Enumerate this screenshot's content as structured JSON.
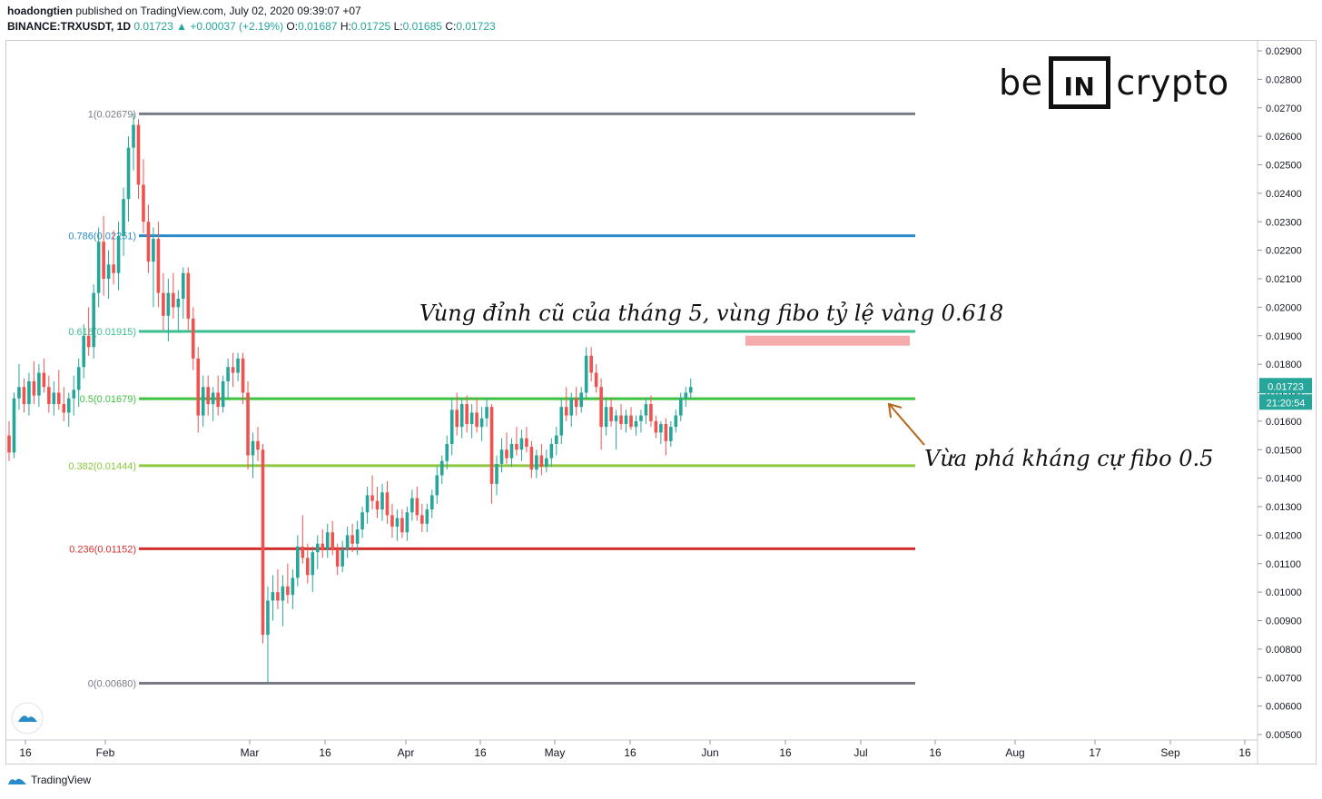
{
  "header": {
    "author": "hoadongtien",
    "published": " published on TradingView.com, July 02, 2020 09:39:07 +07",
    "symbol": "BINANCE:TRXUSDT, 1D",
    "last": "0.01723",
    "change": "+0.00037 (+2.19%)",
    "o_label": "O:",
    "o": "0.01687",
    "h_label": "H:",
    "h": "0.01725",
    "l_label": "L:",
    "l": "0.01685",
    "c_label": "C:",
    "c": "0.01723"
  },
  "logo": {
    "left": "be",
    "box": "IN",
    "right": "crypto"
  },
  "footer": {
    "brand": "TradingView"
  },
  "price_tag": "0.01723",
  "timer_tag": "21:20:54",
  "annotations": {
    "top": "Vùng đỉnh cũ của tháng 5, vùng fibo tỷ lệ vàng 0.618",
    "right": "Vừa phá kháng cự fibo 0.5"
  },
  "colors": {
    "up": "#26a69a",
    "down": "#ef5350"
  },
  "chart_data": {
    "type": "candlestick",
    "y_axis_range": [
      0.005,
      0.029
    ],
    "y_ticks": [
      "0.02900",
      "0.02800",
      "0.02700",
      "0.02600",
      "0.02500",
      "0.02400",
      "0.02300",
      "0.02200",
      "0.02100",
      "0.02000",
      "0.01900",
      "0.01800",
      "0.01700",
      "0.01600",
      "0.01500",
      "0.01400",
      "0.01300",
      "0.01200",
      "0.01100",
      "0.01000",
      "0.00900",
      "0.00800",
      "0.00700",
      "0.00600",
      "0.00500"
    ],
    "x_ticks": [
      "16",
      "Feb",
      "Mar",
      "16",
      "Apr",
      "16",
      "May",
      "16",
      "Jun",
      "16",
      "Jul",
      "16",
      "Aug",
      "17",
      "Sep",
      "16"
    ],
    "fib_levels": [
      {
        "label": "1(0.02679)",
        "value": 0.02679,
        "color": "#787b86"
      },
      {
        "label": "0.786(0.02251)",
        "value": 0.02251,
        "color": "#2a8bc9"
      },
      {
        "label": "0.618(0.01915)",
        "value": 0.01915,
        "color": "#3bbf8e"
      },
      {
        "label": "0.5(0.01679)",
        "value": 0.01679,
        "color": "#3ec23e"
      },
      {
        "label": "0.382(0.01444)",
        "value": 0.01444,
        "color": "#8dc63f"
      },
      {
        "label": "0.236(0.01152)",
        "value": 0.01152,
        "color": "#d32f2f"
      },
      {
        "label": "0(0.00680)",
        "value": 0.0068,
        "color": "#787b86"
      }
    ],
    "resistance_zone": [
      0.01865,
      0.019
    ],
    "candles": [
      [
        0.0155,
        0.016,
        0.0146,
        0.0149
      ],
      [
        0.0149,
        0.017,
        0.0147,
        0.0168
      ],
      [
        0.0168,
        0.018,
        0.0164,
        0.0172
      ],
      [
        0.0172,
        0.0175,
        0.0163,
        0.0166
      ],
      [
        0.0166,
        0.0177,
        0.0162,
        0.0174
      ],
      [
        0.0174,
        0.0181,
        0.0166,
        0.0169
      ],
      [
        0.0169,
        0.018,
        0.0165,
        0.0177
      ],
      [
        0.0177,
        0.0182,
        0.017,
        0.0172
      ],
      [
        0.0172,
        0.0176,
        0.0163,
        0.0166
      ],
      [
        0.0166,
        0.0174,
        0.0162,
        0.017
      ],
      [
        0.017,
        0.0178,
        0.0164,
        0.0166
      ],
      [
        0.0166,
        0.0172,
        0.016,
        0.0163
      ],
      [
        0.0163,
        0.017,
        0.0158,
        0.0168
      ],
      [
        0.0168,
        0.0176,
        0.0162,
        0.0171
      ],
      [
        0.0171,
        0.0182,
        0.0165,
        0.0179
      ],
      [
        0.0179,
        0.0194,
        0.0175,
        0.019
      ],
      [
        0.019,
        0.02,
        0.0183,
        0.0186
      ],
      [
        0.0186,
        0.0208,
        0.0182,
        0.0205
      ],
      [
        0.0205,
        0.0228,
        0.02,
        0.0223
      ],
      [
        0.0223,
        0.0232,
        0.0204,
        0.021
      ],
      [
        0.021,
        0.022,
        0.0203,
        0.0215
      ],
      [
        0.0215,
        0.0227,
        0.0208,
        0.0212
      ],
      [
        0.0212,
        0.023,
        0.0206,
        0.0225
      ],
      [
        0.0225,
        0.0242,
        0.0218,
        0.0238
      ],
      [
        0.0238,
        0.026,
        0.023,
        0.0256
      ],
      [
        0.0256,
        0.0268,
        0.0248,
        0.0264
      ],
      [
        0.0264,
        0.0266,
        0.0238,
        0.0243
      ],
      [
        0.0243,
        0.0252,
        0.0226,
        0.023
      ],
      [
        0.023,
        0.0236,
        0.0212,
        0.0216
      ],
      [
        0.0216,
        0.0228,
        0.02,
        0.0224
      ],
      [
        0.0224,
        0.023,
        0.02,
        0.0205
      ],
      [
        0.0205,
        0.0212,
        0.0192,
        0.0197
      ],
      [
        0.0197,
        0.021,
        0.0188,
        0.0205
      ],
      [
        0.0205,
        0.0212,
        0.0196,
        0.02
      ],
      [
        0.02,
        0.0206,
        0.0192,
        0.0203
      ],
      [
        0.0203,
        0.0214,
        0.0196,
        0.0212
      ],
      [
        0.0212,
        0.0214,
        0.0192,
        0.0196
      ],
      [
        0.0196,
        0.02,
        0.0178,
        0.0182
      ],
      [
        0.0182,
        0.0186,
        0.0156,
        0.0162
      ],
      [
        0.0162,
        0.0176,
        0.0158,
        0.0172
      ],
      [
        0.0172,
        0.0176,
        0.0162,
        0.0166
      ],
      [
        0.0166,
        0.0172,
        0.016,
        0.017
      ],
      [
        0.017,
        0.0176,
        0.0162,
        0.0165
      ],
      [
        0.0165,
        0.0176,
        0.0163,
        0.0174
      ],
      [
        0.0174,
        0.0182,
        0.0168,
        0.0179
      ],
      [
        0.0179,
        0.0184,
        0.0172,
        0.0177
      ],
      [
        0.0177,
        0.0184,
        0.0174,
        0.0182
      ],
      [
        0.0182,
        0.0184,
        0.0166,
        0.017
      ],
      [
        0.017,
        0.0174,
        0.0143,
        0.0148
      ],
      [
        0.0148,
        0.0156,
        0.014,
        0.0153
      ],
      [
        0.0153,
        0.0158,
        0.0146,
        0.015
      ],
      [
        0.015,
        0.0152,
        0.0082,
        0.0085
      ],
      [
        0.0085,
        0.0102,
        0.0068,
        0.0097
      ],
      [
        0.0097,
        0.0106,
        0.009,
        0.01
      ],
      [
        0.01,
        0.0108,
        0.0094,
        0.0097
      ],
      [
        0.0097,
        0.0106,
        0.0088,
        0.0102
      ],
      [
        0.0102,
        0.011,
        0.0096,
        0.0099
      ],
      [
        0.0099,
        0.0108,
        0.0094,
        0.0105
      ],
      [
        0.0105,
        0.012,
        0.0102,
        0.0116
      ],
      [
        0.0116,
        0.0127,
        0.011,
        0.0112
      ],
      [
        0.0112,
        0.0117,
        0.0103,
        0.0106
      ],
      [
        0.0106,
        0.0116,
        0.01,
        0.0114
      ],
      [
        0.0114,
        0.012,
        0.0108,
        0.0117
      ],
      [
        0.0117,
        0.0122,
        0.0112,
        0.0115
      ],
      [
        0.0115,
        0.0124,
        0.0112,
        0.0121
      ],
      [
        0.0121,
        0.0125,
        0.0113,
        0.0115
      ],
      [
        0.0115,
        0.0117,
        0.0106,
        0.0109
      ],
      [
        0.0109,
        0.0118,
        0.0107,
        0.0115
      ],
      [
        0.0115,
        0.0123,
        0.0112,
        0.012
      ],
      [
        0.012,
        0.0124,
        0.0114,
        0.0117
      ],
      [
        0.0117,
        0.0125,
        0.0113,
        0.0122
      ],
      [
        0.0122,
        0.013,
        0.0119,
        0.0128
      ],
      [
        0.0128,
        0.0137,
        0.0124,
        0.0134
      ],
      [
        0.0134,
        0.0141,
        0.0129,
        0.0132
      ],
      [
        0.0132,
        0.0137,
        0.0126,
        0.0129
      ],
      [
        0.0129,
        0.0138,
        0.0125,
        0.0135
      ],
      [
        0.0135,
        0.0139,
        0.0124,
        0.0127
      ],
      [
        0.0127,
        0.0131,
        0.0119,
        0.0123
      ],
      [
        0.0123,
        0.0129,
        0.0118,
        0.0126
      ],
      [
        0.0126,
        0.0129,
        0.0119,
        0.0121
      ],
      [
        0.0121,
        0.013,
        0.0118,
        0.0128
      ],
      [
        0.0128,
        0.0136,
        0.0125,
        0.0133
      ],
      [
        0.0133,
        0.0137,
        0.0125,
        0.0127
      ],
      [
        0.0127,
        0.0131,
        0.0121,
        0.0124
      ],
      [
        0.0124,
        0.0131,
        0.0121,
        0.0129
      ],
      [
        0.0129,
        0.0136,
        0.0126,
        0.0134
      ],
      [
        0.0134,
        0.0144,
        0.0131,
        0.0141
      ],
      [
        0.0141,
        0.0148,
        0.0138,
        0.0146
      ],
      [
        0.0146,
        0.0155,
        0.0143,
        0.0152
      ],
      [
        0.0152,
        0.0168,
        0.0148,
        0.0164
      ],
      [
        0.0164,
        0.017,
        0.0155,
        0.0158
      ],
      [
        0.0158,
        0.0168,
        0.0154,
        0.0166
      ],
      [
        0.0166,
        0.0169,
        0.0156,
        0.0159
      ],
      [
        0.0159,
        0.0166,
        0.0154,
        0.0163
      ],
      [
        0.0163,
        0.0168,
        0.0156,
        0.0158
      ],
      [
        0.0158,
        0.0165,
        0.0153,
        0.0161
      ],
      [
        0.0161,
        0.0168,
        0.0158,
        0.0165
      ],
      [
        0.0165,
        0.0166,
        0.0131,
        0.0138
      ],
      [
        0.0138,
        0.0148,
        0.0134,
        0.0145
      ],
      [
        0.0145,
        0.0154,
        0.0142,
        0.015
      ],
      [
        0.015,
        0.0156,
        0.0145,
        0.0147
      ],
      [
        0.0147,
        0.0154,
        0.0144,
        0.0152
      ],
      [
        0.0152,
        0.0158,
        0.0148,
        0.015
      ],
      [
        0.015,
        0.0157,
        0.0146,
        0.0154
      ],
      [
        0.0154,
        0.0158,
        0.0149,
        0.0151
      ],
      [
        0.0151,
        0.0153,
        0.014,
        0.0143
      ],
      [
        0.0143,
        0.015,
        0.014,
        0.0148
      ],
      [
        0.0148,
        0.0152,
        0.0141,
        0.0144
      ],
      [
        0.0144,
        0.015,
        0.0142,
        0.0147
      ],
      [
        0.0147,
        0.0154,
        0.0144,
        0.0152
      ],
      [
        0.0152,
        0.0158,
        0.0148,
        0.0155
      ],
      [
        0.0155,
        0.0168,
        0.0152,
        0.0165
      ],
      [
        0.0165,
        0.0172,
        0.016,
        0.0162
      ],
      [
        0.0162,
        0.017,
        0.0158,
        0.0168
      ],
      [
        0.0168,
        0.0172,
        0.0162,
        0.0165
      ],
      [
        0.0165,
        0.0172,
        0.0163,
        0.017
      ],
      [
        0.017,
        0.0186,
        0.0168,
        0.0183
      ],
      [
        0.0183,
        0.0186,
        0.0174,
        0.0177
      ],
      [
        0.0177,
        0.018,
        0.017,
        0.0172
      ],
      [
        0.0172,
        0.0175,
        0.015,
        0.0158
      ],
      [
        0.0158,
        0.0168,
        0.0155,
        0.0165
      ],
      [
        0.0165,
        0.0168,
        0.0158,
        0.016
      ],
      [
        0.016,
        0.0164,
        0.015,
        0.0162
      ],
      [
        0.0162,
        0.0166,
        0.0157,
        0.0159
      ],
      [
        0.0159,
        0.0164,
        0.0156,
        0.0162
      ],
      [
        0.0162,
        0.0165,
        0.0157,
        0.0158
      ],
      [
        0.0158,
        0.0162,
        0.0155,
        0.016
      ],
      [
        0.016,
        0.0164,
        0.0156,
        0.0162
      ],
      [
        0.0162,
        0.0168,
        0.0159,
        0.0166
      ],
      [
        0.0166,
        0.0169,
        0.0158,
        0.016
      ],
      [
        0.016,
        0.0162,
        0.0154,
        0.0156
      ],
      [
        0.0156,
        0.016,
        0.0152,
        0.0159
      ],
      [
        0.0159,
        0.0161,
        0.0148,
        0.0153
      ],
      [
        0.0153,
        0.016,
        0.0151,
        0.0158
      ],
      [
        0.0158,
        0.0164,
        0.0156,
        0.0162
      ],
      [
        0.0162,
        0.017,
        0.016,
        0.0168
      ],
      [
        0.0168,
        0.0172,
        0.0165,
        0.017
      ],
      [
        0.017,
        0.0175,
        0.0168,
        0.0172
      ]
    ]
  }
}
